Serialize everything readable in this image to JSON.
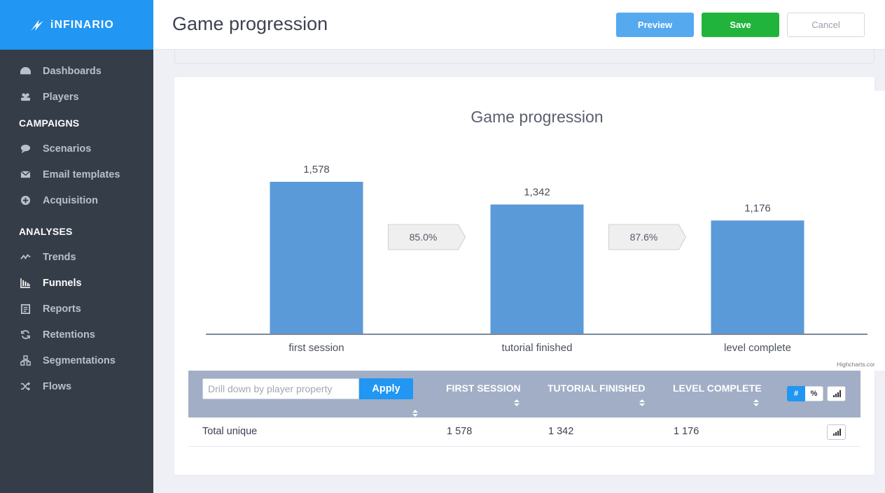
{
  "brand": {
    "name": "iNFINARIO",
    "accent": "#2196f3"
  },
  "sidebar": {
    "items": [
      {
        "label": "Dashboards",
        "icon": "dashboard-icon"
      },
      {
        "label": "Players",
        "icon": "players-icon"
      }
    ],
    "campaigns": {
      "title": "CAMPAIGNS",
      "items": [
        {
          "label": "Scenarios",
          "icon": "chat-bubble-icon"
        },
        {
          "label": "Email templates",
          "icon": "envelope-icon"
        },
        {
          "label": "Acquisition",
          "icon": "plus-circle-icon"
        }
      ]
    },
    "analyses": {
      "title": "ANALYSES",
      "items": [
        {
          "label": "Trends",
          "icon": "trend-line-icon"
        },
        {
          "label": "Funnels",
          "icon": "bar-chart-icon",
          "active": true
        },
        {
          "label": "Reports",
          "icon": "clipboard-icon"
        },
        {
          "label": "Retentions",
          "icon": "refresh-icon"
        },
        {
          "label": "Segmentations",
          "icon": "segments-icon"
        },
        {
          "label": "Flows",
          "icon": "shuffle-icon"
        }
      ]
    }
  },
  "header": {
    "title": "Game progression",
    "preview_label": "Preview",
    "save_label": "Save",
    "cancel_label": "Cancel"
  },
  "chart_data": {
    "type": "bar",
    "title": "Game progression",
    "categories": [
      "first session",
      "tutorial finished",
      "level complete"
    ],
    "values": [
      1578,
      1342,
      1176
    ],
    "value_labels": [
      "1,578",
      "1,342",
      "1,176"
    ],
    "conversions": [
      "85.0%",
      "87.6%"
    ],
    "bar_color": "#5b9ad9",
    "credit": "Highcharts.com",
    "ylim": [
      0,
      1578
    ]
  },
  "table": {
    "drill_placeholder": "Drill down by player property",
    "apply_label": "Apply",
    "columns": [
      "FIRST SESSION",
      "TUTORIAL FINISHED",
      "LEVEL COMPLETE"
    ],
    "toggle": {
      "count": "#",
      "percent": "%"
    },
    "rows": [
      {
        "label": "Total unique",
        "values": [
          "1 578",
          "1 342",
          "1 176"
        ]
      }
    ]
  }
}
